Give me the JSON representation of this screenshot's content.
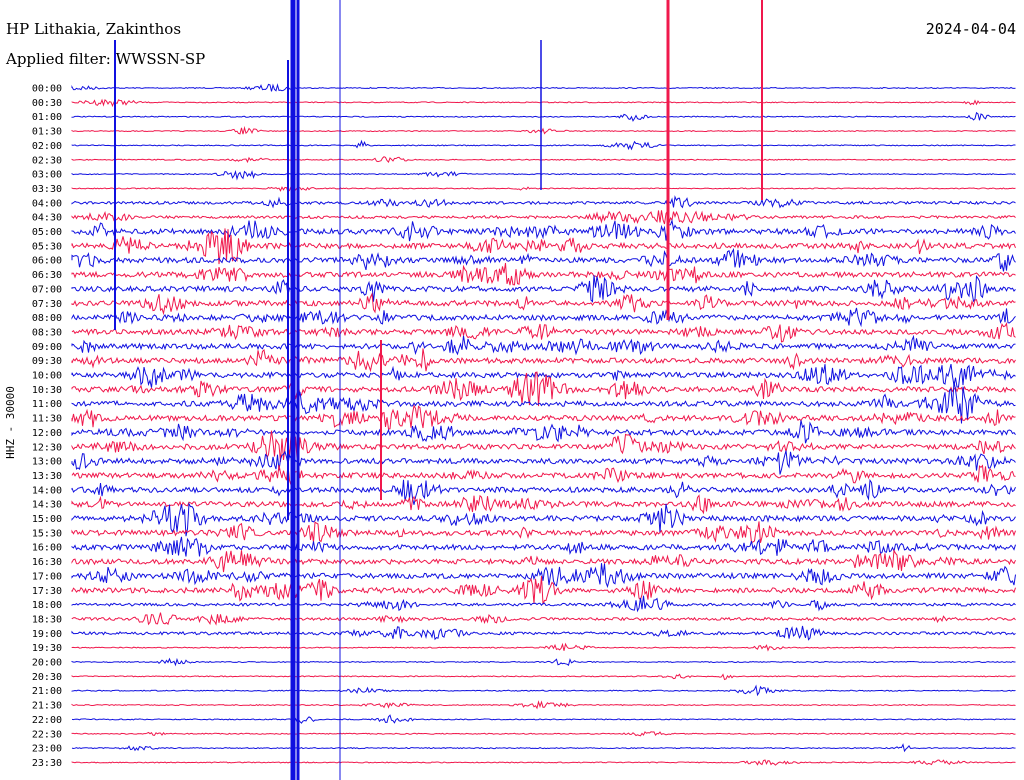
{
  "header": {
    "station": "HP Lithakia, Zakinthos",
    "filter": "Applied filter: WWSSN-SP",
    "date": "2024-04-04"
  },
  "axis": {
    "channel_label": "HHZ - 30000"
  },
  "colors": {
    "trace_a": "#1010e0",
    "trace_b": "#f0184c",
    "text": "#000000",
    "background": "#ffffff"
  },
  "rows": [
    "00:00",
    "00:30",
    "01:00",
    "01:30",
    "02:00",
    "02:30",
    "03:00",
    "03:30",
    "04:00",
    "04:30",
    "05:00",
    "05:30",
    "06:00",
    "06:30",
    "07:00",
    "07:30",
    "08:00",
    "08:30",
    "09:00",
    "09:30",
    "10:00",
    "10:30",
    "11:00",
    "11:30",
    "12:00",
    "12:30",
    "13:00",
    "13:30",
    "14:00",
    "14:30",
    "15:00",
    "15:30",
    "16:00",
    "16:30",
    "17:00",
    "17:30",
    "18:00",
    "18:30",
    "19:00",
    "19:30",
    "20:00",
    "20:30",
    "21:00",
    "21:30",
    "22:00",
    "22:30",
    "23:00",
    "23:30"
  ],
  "activity": [
    1,
    1,
    1,
    1,
    1,
    1,
    1,
    1,
    2,
    2,
    3,
    3,
    3,
    3,
    3,
    3,
    3,
    3,
    3,
    3,
    3,
    3,
    3,
    3,
    3,
    3,
    3,
    3,
    3,
    3,
    3,
    3,
    3,
    3,
    3,
    3,
    2,
    2,
    2,
    1,
    1,
    1,
    1,
    1,
    1,
    1,
    1,
    1
  ]
}
